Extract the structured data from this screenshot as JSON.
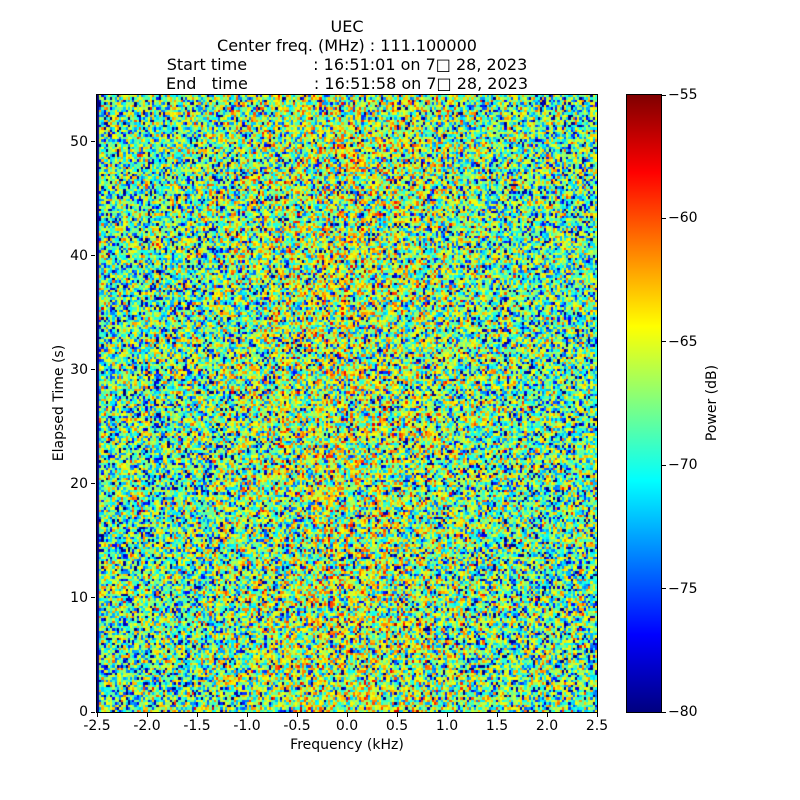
{
  "chart_data": {
    "type": "heatmap",
    "title_lines": [
      "UEC",
      "Center freq. (MHz) : 111.100000",
      "Start time             : 16:51:01 on 7□ 28, 2023",
      "End   time             : 16:51:58 on 7□ 28, 2023"
    ],
    "xlabel": "Frequency (kHz)",
    "ylabel": "Elapsed Time (s)",
    "xlim": [
      -2.5,
      2.5
    ],
    "ylim": [
      0,
      54.1
    ],
    "grid": false,
    "x_ticks": {
      "values": [
        -2.5,
        -2.0,
        -1.5,
        -1.0,
        -0.5,
        0.0,
        0.5,
        1.0,
        1.5,
        2.0,
        2.5
      ],
      "labels": [
        "-2.5",
        "-2.0",
        "-1.5",
        "-1.0",
        "-0.5",
        "0.0",
        "0.5",
        "1.0",
        "1.5",
        "2.0",
        "2.5"
      ]
    },
    "y_ticks": {
      "values": [
        0,
        10,
        20,
        30,
        40,
        50
      ],
      "labels": [
        "0",
        "10",
        "20",
        "30",
        "40",
        "50"
      ]
    },
    "colorbar": {
      "label": "Power (dB)",
      "vmin": -80,
      "vmax": -55,
      "tick_values": [
        -55,
        -60,
        -65,
        -70,
        -75,
        -80
      ],
      "tick_labels": [
        "−55",
        "−60",
        "−65",
        "−70",
        "−75",
        "−80"
      ],
      "colormap": "jet",
      "stops": [
        {
          "t": 0.0,
          "color": "#000080"
        },
        {
          "t": 0.125,
          "color": "#0000ff"
        },
        {
          "t": 0.25,
          "color": "#0080ff"
        },
        {
          "t": 0.375,
          "color": "#00ffff"
        },
        {
          "t": 0.5,
          "color": "#80ff80"
        },
        {
          "t": 0.625,
          "color": "#ffff00"
        },
        {
          "t": 0.75,
          "color": "#ff8000"
        },
        {
          "t": 0.875,
          "color": "#ff0000"
        },
        {
          "t": 1.0,
          "color": "#800000"
        }
      ]
    },
    "heatmap": {
      "description": "broadband RF noise spectrogram, no coherent signal, slightly brighter near center frequency, dark leftmost column",
      "cols": 227,
      "rows": 250,
      "noise_model": "exponential-power-db",
      "base_db": -67,
      "median_db": -68.6,
      "center_bump_db": 2.2,
      "bump_sigma": 0.18,
      "left_edge_column_db": -80,
      "seed": 20230728
    }
  }
}
